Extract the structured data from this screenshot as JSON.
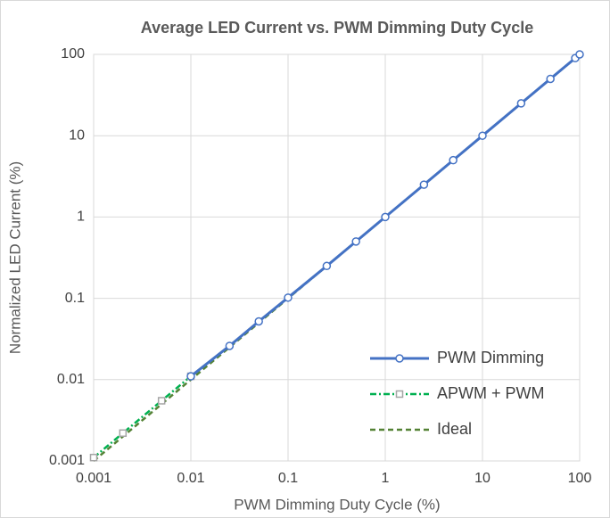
{
  "chart_data": {
    "type": "line",
    "title": "Average LED Current vs. PWM Dimming Duty Cycle",
    "x_label": "PWM Dimming Duty Cycle (%)",
    "y_label": "Normalized LED Current (%)",
    "xscale": "log",
    "yscale": "log",
    "xlim": [
      0.001,
      100
    ],
    "ylim": [
      0.001,
      100
    ],
    "xticks": [
      0.001,
      0.01,
      0.1,
      1,
      10,
      100
    ],
    "yticks": [
      0.001,
      0.01,
      0.1,
      1,
      10,
      100
    ],
    "grid": true,
    "legend": "lower right",
    "series": [
      {
        "name": "PWM Dimming",
        "color": "#4472c4",
        "marker": "circle",
        "dash": "solid",
        "x": [
          0.01,
          0.025,
          0.05,
          0.1,
          0.25,
          0.5,
          1,
          2.5,
          5,
          10,
          25,
          50,
          90,
          100
        ],
        "values": [
          0.011,
          0.026,
          0.052,
          0.102,
          0.25,
          0.5,
          1,
          2.5,
          5,
          10,
          25,
          50,
          90,
          100
        ]
      },
      {
        "name": "APWM + PWM",
        "color": "#00b050",
        "marker": "square",
        "dash": "dashdot",
        "x": [
          0.001,
          0.002,
          0.005,
          0.01
        ],
        "values": [
          0.0011,
          0.0022,
          0.0055,
          0.011
        ]
      },
      {
        "name": "Ideal",
        "color": "#548235",
        "marker": "none",
        "dash": "dashed",
        "x": [
          0.001,
          100
        ],
        "values": [
          0.001,
          100
        ]
      }
    ]
  }
}
